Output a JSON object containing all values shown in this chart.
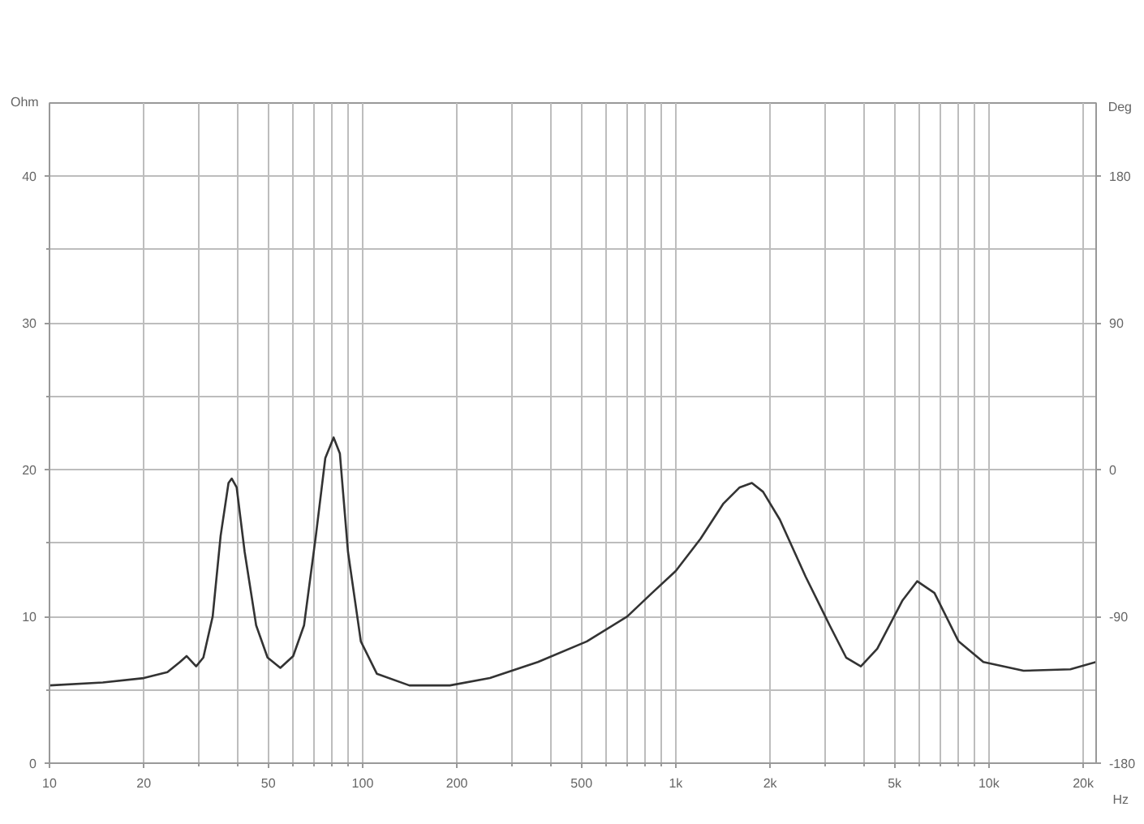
{
  "chart_data": {
    "type": "line",
    "log": "x",
    "grid": true,
    "line_style": "solid",
    "xlabel": "Hz",
    "ylabel": "Ohm",
    "y2label": "Deg",
    "xlim": [
      10,
      22000
    ],
    "xticks": [
      10,
      20,
      {
        "value": 30,
        "label": null
      },
      {
        "value": 40,
        "label": null
      },
      50,
      {
        "value": 60,
        "label": null
      },
      {
        "value": 70,
        "label": null
      },
      {
        "value": 80,
        "label": null
      },
      {
        "value": 90,
        "label": null
      },
      100,
      200,
      {
        "value": 300,
        "label": null
      },
      {
        "value": 400,
        "label": null
      },
      500,
      {
        "value": 600,
        "label": null
      },
      {
        "value": 700,
        "label": null
      },
      {
        "value": 800,
        "label": null
      },
      {
        "value": 900,
        "label": null
      },
      {
        "value": 1000,
        "label": "1k"
      },
      {
        "value": 2000,
        "label": "2k"
      },
      {
        "value": 3000,
        "label": null
      },
      {
        "value": 4000,
        "label": null
      },
      {
        "value": 5000,
        "label": "5k"
      },
      {
        "value": 6000,
        "label": null
      },
      {
        "value": 7000,
        "label": null
      },
      {
        "value": 8000,
        "label": null
      },
      {
        "value": 9000,
        "label": null
      },
      {
        "value": 10000,
        "label": "10k"
      },
      {
        "value": 20000,
        "label": "20k"
      }
    ],
    "ylim": [
      0,
      45
    ],
    "yticks": [
      0,
      {
        "value": 5,
        "label": null
      },
      10,
      {
        "value": 15,
        "label": null
      },
      20,
      {
        "value": 25,
        "label": null
      },
      30,
      {
        "value": 35,
        "label": null
      },
      40
    ],
    "y2lim": [
      -180,
      225
    ],
    "y2ticks": [
      -180,
      -90,
      0,
      90,
      180
    ],
    "series": [
      {
        "color": "#333333",
        "x": [
          10,
          14.8,
          20,
          23.8,
          26.1,
          27.4,
          29.4,
          31,
          33.2,
          35.2,
          37.3,
          38.2,
          39.6,
          42,
          45.7,
          49.7,
          54.6,
          60,
          65,
          70.9,
          76,
          80.8,
          84.6,
          89.8,
          98.7,
          111,
          141,
          190,
          255,
          363,
          520,
          700,
          840,
          1000,
          1200,
          1420,
          1600,
          1750,
          1900,
          2150,
          2600,
          3100,
          3500,
          3900,
          4400,
          5300,
          5900,
          6700,
          8000,
          9600,
          12900,
          18200,
          22000
        ],
        "values": [
          5.3,
          5.5,
          5.8,
          6.2,
          6.9,
          7.3,
          6.6,
          7.2,
          10,
          15.5,
          19.1,
          19.4,
          18.8,
          14.4,
          9.4,
          7.2,
          6.5,
          7.3,
          9.4,
          15.5,
          20.8,
          22.2,
          21.1,
          14.4,
          8.3,
          6.1,
          5.3,
          5.3,
          5.8,
          6.9,
          8.3,
          10,
          11.6,
          13.1,
          15.3,
          17.7,
          18.8,
          19.1,
          18.5,
          16.6,
          12.7,
          9.4,
          7.2,
          6.6,
          7.8,
          11.1,
          12.4,
          11.6,
          8.3,
          6.9,
          6.3,
          6.4,
          6.9
        ]
      }
    ]
  }
}
